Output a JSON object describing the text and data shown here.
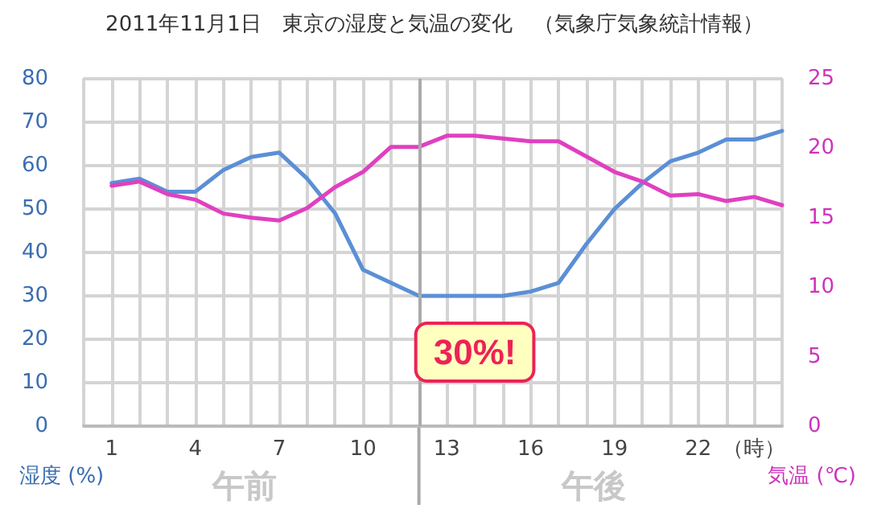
{
  "chart_data": {
    "type": "line",
    "title": "2011年11月1日　東京の湿度と気温の変化　（気象庁気象統計情報）",
    "x": [
      1,
      2,
      3,
      4,
      5,
      6,
      7,
      8,
      9,
      10,
      11,
      12,
      13,
      14,
      15,
      16,
      17,
      18,
      19,
      20,
      21,
      22,
      23,
      24,
      25
    ],
    "series": [
      {
        "color": "#5b8fd6",
        "values": [
          56,
          57,
          54,
          54,
          59,
          62,
          63,
          57,
          49,
          36,
          33,
          30,
          30,
          30,
          30,
          31,
          33,
          42,
          50,
          56,
          61,
          63,
          66,
          66,
          68
        ]
      },
      {
        "color": "#e040c0",
        "axis": "y2",
        "values": [
          17.3,
          17.6,
          16.7,
          16.3,
          15.3,
          15.0,
          14.8,
          15.7,
          17.2,
          18.3,
          20.1,
          20.1,
          20.9,
          20.9,
          20.7,
          20.5,
          20.5,
          19.4,
          18.3,
          17.6,
          16.6,
          16.7,
          16.2,
          16.5,
          15.9
        ]
      }
    ],
    "ylabel": "湿度 (%)",
    "y2label": "気温 (℃)",
    "xlim": [
      0,
      25
    ],
    "xticks": [
      {
        "value": 0,
        "label": null
      },
      1,
      {
        "value": 2,
        "label": null
      },
      {
        "value": 3,
        "label": null
      },
      4,
      {
        "value": 5,
        "label": null
      },
      {
        "value": 6,
        "label": null
      },
      7,
      {
        "value": 8,
        "label": null
      },
      {
        "value": 9,
        "label": null
      },
      10,
      {
        "value": 11,
        "label": null
      },
      {
        "value": 12,
        "label": null
      },
      13,
      {
        "value": 14,
        "label": null
      },
      {
        "value": 15,
        "label": null
      },
      16,
      {
        "value": 17,
        "label": null
      },
      {
        "value": 18,
        "label": null
      },
      19,
      {
        "value": 20,
        "label": null
      },
      {
        "value": 21,
        "label": null
      },
      22,
      {
        "value": 23,
        "label": null
      },
      {
        "value": 24,
        "label": "（時）"
      },
      {
        "value": 25,
        "label": null
      }
    ],
    "ylim": [
      0,
      80
    ],
    "yticks": [
      0,
      10,
      20,
      30,
      40,
      50,
      60,
      70,
      80
    ],
    "y2lim": [
      0,
      25
    ],
    "y2ticks": [
      0,
      5,
      10,
      15,
      20,
      25
    ],
    "ref_lines": [
      {
        "axis": "x",
        "value": 12,
        "color": "#aaaaaa"
      }
    ],
    "annotations": [
      {
        "text": "30%!",
        "x": 14,
        "y": 30
      },
      "午前",
      "午後"
    ],
    "grid": true,
    "marker": "none",
    "line_style": "solid"
  }
}
